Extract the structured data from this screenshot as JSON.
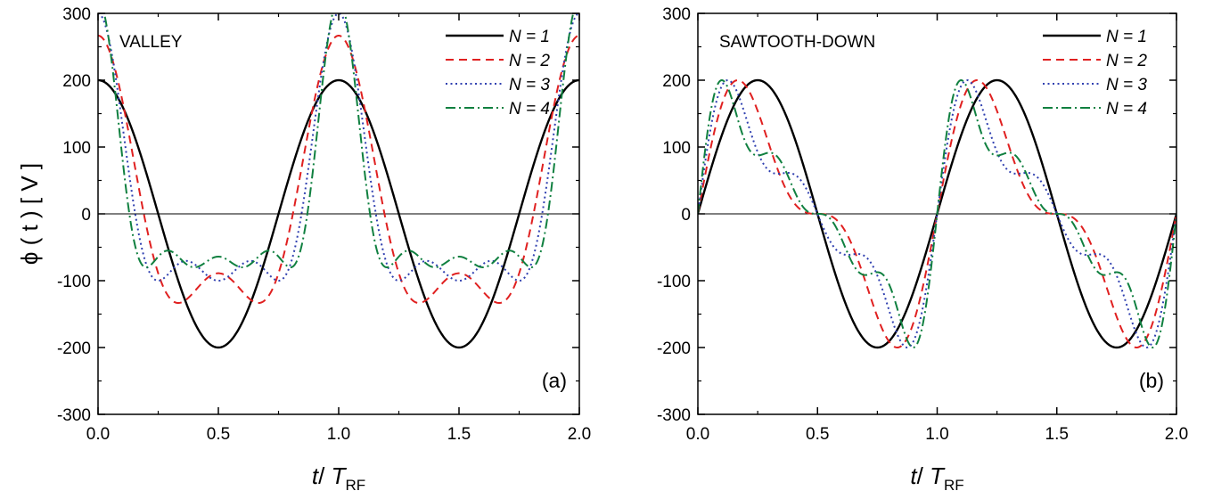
{
  "chart_data": [
    {
      "type": "line",
      "panel_label": "(a)",
      "annotation": "VALLEY",
      "xlabel": {
        "main": "t",
        "sep": "/ ",
        "sym": "T",
        "sub": "RF"
      },
      "ylabel": "ϕ ( t ) [ V ]",
      "xlim": [
        0,
        2
      ],
      "ylim": [
        -300,
        300
      ],
      "xticks": [
        "0.0",
        "0.5",
        "1.0",
        "1.5",
        "2.0"
      ],
      "yticks": [
        "300",
        "200",
        "100",
        "0",
        "-100",
        "-200",
        "-300"
      ],
      "legend_position": "top-right",
      "waveform": "valley",
      "amplitude_V": 400,
      "series": [
        {
          "name": "N = 1",
          "N": 1,
          "color": "#000000",
          "dash": "solid"
        },
        {
          "name": "N = 2",
          "N": 2,
          "color": "#e02020",
          "dash": "dash"
        },
        {
          "name": "N = 3",
          "N": 3,
          "color": "#3040b0",
          "dash": "dot"
        },
        {
          "name": "N = 4",
          "N": 4,
          "color": "#108040",
          "dash": "dashdot"
        }
      ]
    },
    {
      "type": "line",
      "panel_label": "(b)",
      "annotation": "SAWTOOTH-DOWN",
      "xlabel": {
        "main": "t",
        "sep": "/ ",
        "sym": "T",
        "sub": "RF"
      },
      "ylabel": "",
      "xlim": [
        0,
        2
      ],
      "ylim": [
        -300,
        300
      ],
      "xticks": [
        "0.0",
        "0.5",
        "1.0",
        "1.5",
        "2.0"
      ],
      "yticks": [
        "300",
        "200",
        "100",
        "0",
        "-100",
        "-200",
        "-300"
      ],
      "legend_position": "top-right",
      "waveform": "sawtooth-down",
      "amplitude_V": 200,
      "series": [
        {
          "name": "N = 1",
          "N": 1,
          "color": "#000000",
          "dash": "solid"
        },
        {
          "name": "N = 2",
          "N": 2,
          "color": "#e02020",
          "dash": "dash"
        },
        {
          "name": "N = 3",
          "N": 3,
          "color": "#3040b0",
          "dash": "dot"
        },
        {
          "name": "N = 4",
          "N": 4,
          "color": "#108040",
          "dash": "dashdot"
        }
      ]
    }
  ]
}
